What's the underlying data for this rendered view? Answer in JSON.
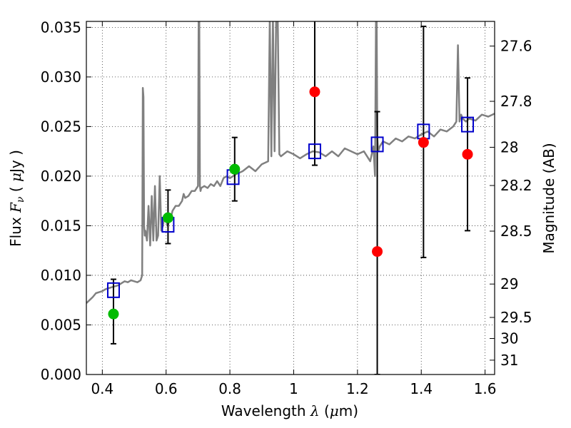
{
  "chart_data": {
    "type": "scatter",
    "title": "",
    "xlabel": {
      "pre": "Wavelength  ",
      "sym": "λ",
      "post": " (",
      "mu": "μ",
      "unit": "m)"
    },
    "ylabel": {
      "pre": "Flux  ",
      "sym": "F",
      "sub": "ν",
      "post": "  ( ",
      "mu": "μ",
      "unit": "Jy )"
    },
    "y2label": "Magnitude (AB)",
    "xlim": [
      0.35,
      1.63
    ],
    "ylim": [
      0.0,
      0.0356
    ],
    "grid": true,
    "legend": "none",
    "xticks": [
      {
        "value": 0.4,
        "label": "0.4"
      },
      {
        "value": 0.6,
        "label": "0.6"
      },
      {
        "value": 0.8,
        "label": "0.8"
      },
      {
        "value": 1.0,
        "label": "1"
      },
      {
        "value": 1.2,
        "label": "1.2"
      },
      {
        "value": 1.4,
        "label": "1.4"
      },
      {
        "value": 1.6,
        "label": "1.6"
      }
    ],
    "yticks": [
      {
        "value": 0.0,
        "label": "0.000"
      },
      {
        "value": 0.005,
        "label": "0.005"
      },
      {
        "value": 0.01,
        "label": "0.010"
      },
      {
        "value": 0.015,
        "label": "0.015"
      },
      {
        "value": 0.02,
        "label": "0.020"
      },
      {
        "value": 0.025,
        "label": "0.025"
      },
      {
        "value": 0.03,
        "label": "0.030"
      },
      {
        "value": 0.035,
        "label": "0.035"
      }
    ],
    "y2ticks": [
      {
        "value": 27.6,
        "label": "27.6"
      },
      {
        "value": 27.8,
        "label": "27.8"
      },
      {
        "value": 28.0,
        "label": "28"
      },
      {
        "value": 28.2,
        "label": "28.2"
      },
      {
        "value": 28.5,
        "label": "28.5"
      },
      {
        "value": 29.0,
        "label": "29"
      },
      {
        "value": 29.5,
        "label": "29.5"
      },
      {
        "value": 30.0,
        "label": "30"
      },
      {
        "value": 31.0,
        "label": "31"
      }
    ],
    "colors": {
      "model": "#808080",
      "green": "#00bb00",
      "red": "#ff0000",
      "box": "#0000cc",
      "err": "#000000"
    },
    "series": [
      {
        "kind": "spectrum",
        "x": [
          0.35,
          0.36,
          0.37,
          0.38,
          0.39,
          0.4,
          0.41,
          0.42,
          0.43,
          0.44,
          0.45,
          0.46,
          0.47,
          0.48,
          0.49,
          0.5,
          0.51,
          0.52,
          0.525,
          0.527,
          0.529,
          0.531,
          0.533,
          0.535,
          0.54,
          0.545,
          0.55,
          0.555,
          0.56,
          0.565,
          0.57,
          0.575,
          0.58,
          0.585,
          0.59,
          0.595,
          0.6,
          0.605,
          0.61,
          0.615,
          0.62,
          0.63,
          0.64,
          0.65,
          0.655,
          0.66,
          0.67,
          0.68,
          0.69,
          0.7,
          0.702,
          0.704,
          0.706,
          0.708,
          0.71,
          0.72,
          0.73,
          0.74,
          0.75,
          0.76,
          0.77,
          0.78,
          0.79,
          0.8,
          0.82,
          0.84,
          0.86,
          0.88,
          0.9,
          0.92,
          0.925,
          0.93,
          0.935,
          0.94,
          0.945,
          0.95,
          0.955,
          0.96,
          0.98,
          1.0,
          1.02,
          1.04,
          1.06,
          1.08,
          1.1,
          1.12,
          1.14,
          1.16,
          1.18,
          1.2,
          1.22,
          1.24,
          1.25,
          1.255,
          1.258,
          1.26,
          1.262,
          1.265,
          1.27,
          1.28,
          1.3,
          1.32,
          1.34,
          1.36,
          1.38,
          1.4,
          1.42,
          1.44,
          1.46,
          1.48,
          1.5,
          1.51,
          1.515,
          1.52,
          1.525,
          1.53,
          1.54,
          1.55,
          1.57,
          1.59,
          1.61,
          1.63
        ],
        "y": [
          0.0072,
          0.0075,
          0.0078,
          0.0082,
          0.0083,
          0.0084,
          0.0086,
          0.0087,
          0.0088,
          0.0089,
          0.009,
          0.0092,
          0.0094,
          0.0093,
          0.0095,
          0.0094,
          0.0093,
          0.0095,
          0.01,
          0.0289,
          0.028,
          0.015,
          0.014,
          0.0145,
          0.0135,
          0.017,
          0.013,
          0.018,
          0.0135,
          0.019,
          0.0135,
          0.014,
          0.02,
          0.0145,
          0.015,
          0.016,
          0.0155,
          0.015,
          0.0155,
          0.0158,
          0.0165,
          0.017,
          0.017,
          0.0175,
          0.0182,
          0.0178,
          0.018,
          0.0185,
          0.0185,
          0.019,
          0.036,
          0.036,
          0.019,
          0.0185,
          0.0188,
          0.019,
          0.0188,
          0.0192,
          0.019,
          0.0195,
          0.019,
          0.0198,
          0.02,
          0.0198,
          0.0202,
          0.0205,
          0.021,
          0.0205,
          0.0212,
          0.0215,
          0.036,
          0.022,
          0.036,
          0.0225,
          0.036,
          0.036,
          0.0222,
          0.022,
          0.0225,
          0.0222,
          0.0218,
          0.0222,
          0.0225,
          0.0224,
          0.022,
          0.0225,
          0.022,
          0.0228,
          0.0225,
          0.0222,
          0.0225,
          0.0215,
          0.023,
          0.02,
          0.036,
          0.036,
          0.024,
          0.0225,
          0.023,
          0.0235,
          0.0232,
          0.0238,
          0.0235,
          0.024,
          0.0238,
          0.0242,
          0.0245,
          0.024,
          0.0247,
          0.0245,
          0.025,
          0.0255,
          0.0332,
          0.0255,
          0.0262,
          0.0258,
          0.0255,
          0.0258,
          0.0256,
          0.0262,
          0.026,
          0.0263
        ]
      },
      {
        "kind": "green-points",
        "x": [
          0.435,
          0.606,
          0.815
        ],
        "y": [
          0.0061,
          0.0158,
          0.0207
        ],
        "yerr_low": [
          0.0031,
          0.0132,
          0.0175
        ],
        "yerr_high": [
          0.0096,
          0.0186,
          0.0239
        ]
      },
      {
        "kind": "red-points",
        "x": [
          1.066,
          1.262,
          1.407,
          1.545
        ],
        "y": [
          0.0285,
          0.0124,
          0.0234,
          0.0222
        ],
        "yerr_low": [
          0.0211,
          0.0,
          0.0118,
          0.0145
        ],
        "yerr_high": [
          0.036,
          0.0265,
          0.0351,
          0.0299
        ]
      },
      {
        "kind": "model-boxes",
        "x": [
          0.435,
          0.606,
          0.81,
          1.066,
          1.262,
          1.407,
          1.545
        ],
        "y": [
          0.0085,
          0.0151,
          0.0199,
          0.0225,
          0.0232,
          0.0245,
          0.0252
        ]
      }
    ]
  }
}
